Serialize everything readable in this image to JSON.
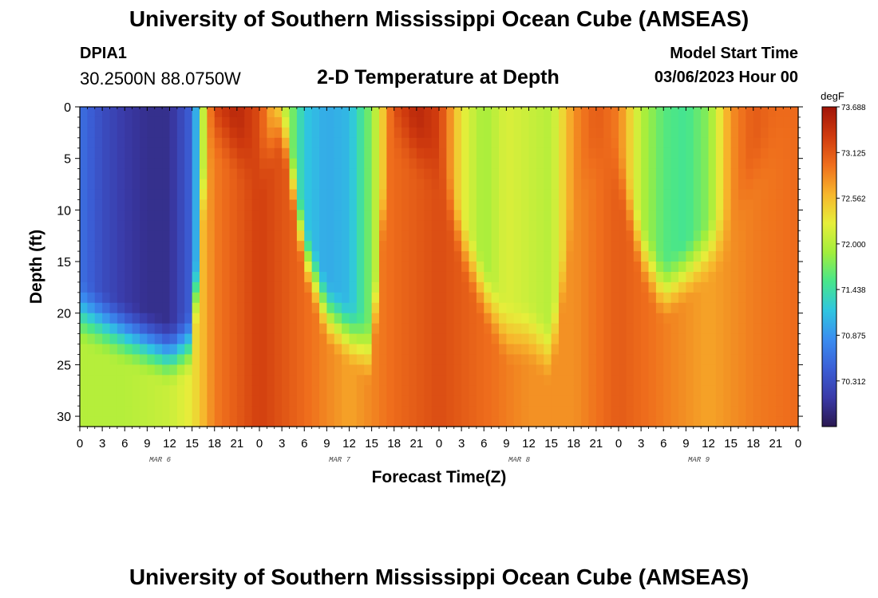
{
  "header": {
    "title": "University of Southern Mississippi Ocean Cube (AMSEAS)",
    "station": "DPIA1",
    "coords": "30.2500N  88.0750W",
    "subtitle": "2-D Temperature at Depth",
    "start_label": "Model Start Time",
    "start_value": "03/06/2023 Hour 00"
  },
  "footer": {
    "title": "University of Southern Mississippi Ocean Cube (AMSEAS)"
  },
  "chart_data": {
    "type": "heatmap",
    "title": "2-D Temperature at Depth",
    "xlabel": "Forecast Time(Z)",
    "ylabel": "Depth (ft)",
    "x_range_hours": [
      0,
      96
    ],
    "y_range_ft": [
      0,
      31
    ],
    "x_tick_labels": [
      "0",
      "3",
      "6",
      "9",
      "12",
      "15",
      "18",
      "21",
      "0",
      "3",
      "6",
      "9",
      "12",
      "15",
      "18",
      "21",
      "0",
      "3",
      "6",
      "9",
      "12",
      "15",
      "18",
      "21",
      "0",
      "3",
      "6",
      "9",
      "12",
      "15",
      "18",
      "21",
      "0"
    ],
    "day_labels": [
      "MAR 6",
      "MAR 7",
      "MAR 8",
      "MAR 9"
    ],
    "y_ticks": [
      0,
      5,
      10,
      15,
      20,
      25,
      30
    ],
    "y_tick_labels": [
      "0",
      "5",
      "10",
      "15",
      "20",
      "25",
      "30"
    ],
    "colorbar": {
      "unit": "degF",
      "min": 69.75,
      "max": 73.688,
      "tick_values": [
        73.688,
        73.125,
        72.562,
        72.0,
        71.438,
        70.875,
        70.312
      ],
      "tick_labels": [
        "73.688",
        "73.125",
        "72.562",
        "72.000",
        "71.438",
        "70.875",
        "70.312"
      ],
      "colors": [
        "#2a1850",
        "#3a3aa8",
        "#3b5fd6",
        "#3a8df0",
        "#2fc6e0",
        "#48e68a",
        "#a2ee3c",
        "#e6ee3a",
        "#f7b62c",
        "#ef6e1c",
        "#cf3a0e",
        "#a01408"
      ]
    },
    "surface_temp_hourly_degF": {
      "hours": [
        0,
        3,
        6,
        9,
        12,
        15,
        17,
        18,
        21,
        24,
        27,
        30,
        33,
        36,
        39,
        42,
        45,
        48,
        51,
        54,
        57,
        60,
        63,
        66,
        69,
        72,
        75,
        78,
        81,
        84,
        87,
        90,
        93,
        96
      ],
      "values": [
        70.6,
        70.3,
        70.1,
        70.0,
        70.0,
        70.5,
        72.6,
        73.3,
        73.5,
        73.2,
        72.2,
        71.2,
        71.0,
        71.1,
        71.8,
        73.2,
        73.5,
        73.3,
        72.3,
        71.9,
        72.2,
        72.1,
        72.0,
        72.8,
        73.1,
        72.9,
        72.0,
        71.6,
        71.5,
        71.8,
        72.8,
        73.1,
        73.0,
        73.0
      ]
    },
    "bottom_temp_hourly_degF": {
      "hours": [
        0,
        6,
        12,
        15,
        18,
        24,
        30,
        36,
        42,
        48,
        54,
        60,
        66,
        72,
        78,
        84,
        90,
        96
      ],
      "values": [
        72.0,
        72.0,
        72.1,
        72.3,
        72.9,
        73.3,
        73.0,
        72.7,
        73.0,
        73.2,
        73.0,
        72.8,
        72.8,
        73.1,
        72.9,
        72.7,
        72.9,
        73.0
      ]
    },
    "thermocline_depth_hourly_ft": {
      "hours": [
        0,
        6,
        12,
        15,
        17,
        18,
        21,
        24,
        27,
        30,
        33,
        36,
        39,
        41,
        42,
        45,
        48,
        51,
        54,
        57,
        60,
        63,
        66,
        69,
        72,
        75,
        78,
        81,
        84,
        87,
        90,
        93,
        96
      ],
      "values": [
        20,
        22,
        24,
        23,
        4,
        2,
        4,
        6,
        1,
        14,
        20,
        22,
        24,
        6,
        2,
        4,
        6,
        13,
        18,
        22,
        22,
        24,
        10,
        4,
        6,
        14,
        18,
        16,
        14,
        12,
        6,
        3,
        2
      ]
    }
  }
}
